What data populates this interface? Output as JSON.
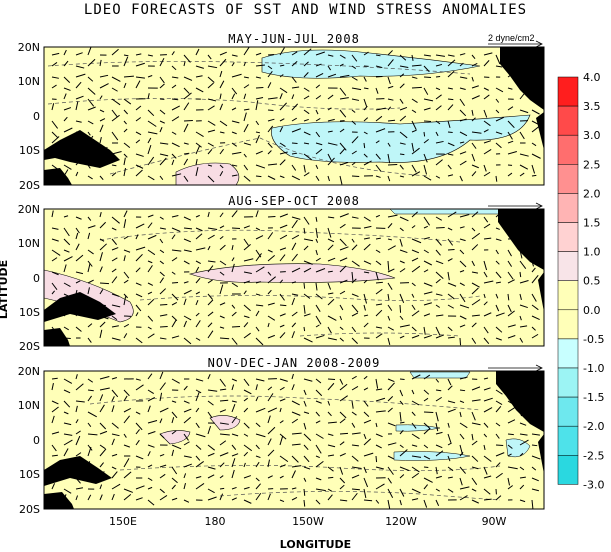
{
  "title": "LDEO FORECASTS OF SST AND WIND STRESS ANOMALIES",
  "ylabel": "LATITUDE",
  "xlabel": "LONGITUDE",
  "reference_vector_label": "2 dyne/cm2",
  "panels": [
    {
      "title": "MAY-JUN-JUL 2008"
    },
    {
      "title": "AUG-SEP-OCT 2008"
    },
    {
      "title": "NOV-DEC-JAN 2008-2009"
    }
  ],
  "lat_ticks": [
    "20N",
    "10N",
    "0",
    "10S",
    "20S"
  ],
  "lon_ticks": [
    "150E",
    "180",
    "150W",
    "120W",
    "90W"
  ],
  "colorbar": {
    "labels": [
      "4.0",
      "3.5",
      "3.0",
      "2.5",
      "2.0",
      "1.5",
      "1.0",
      "0.5",
      "0.0",
      "-0.5",
      "-1.0",
      "-1.5",
      "-2.0",
      "-2.5",
      "-3.0"
    ],
    "colors": [
      "#ff1e1e",
      "#ff4a4a",
      "#ff6e6e",
      "#ff9090",
      "#ffb4b4",
      "#ffd2d2",
      "#f8e4e8",
      "#ffffb8",
      "#ffffb8",
      "#c8ffff",
      "#9cf4f4",
      "#6ee8ee",
      "#4ee2ea",
      "#2ad8e0"
    ]
  },
  "colors": {
    "land": "#000000",
    "neutral": "#ffffb8",
    "warm": "#f8dde4",
    "cool": "#bff6f8"
  }
}
